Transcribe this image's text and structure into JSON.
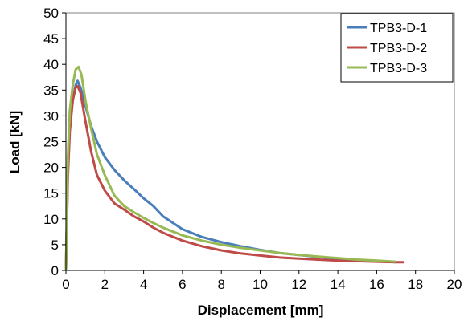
{
  "chart_data": {
    "type": "line",
    "title": "",
    "xlabel": "Displacement [mm]",
    "ylabel": "Load [kN]",
    "xlim": [
      0,
      20
    ],
    "ylim": [
      0,
      50
    ],
    "xticks": [
      0,
      2,
      4,
      6,
      8,
      10,
      12,
      14,
      16,
      18,
      20
    ],
    "yticks": [
      0,
      5,
      10,
      15,
      20,
      25,
      30,
      35,
      40,
      45,
      50
    ],
    "grid": false,
    "legend_position": "top-right",
    "series": [
      {
        "name": "TPB3-D-1",
        "color": "#4a7ebb",
        "points": [
          [
            0,
            0
          ],
          [
            0.1,
            20
          ],
          [
            0.2,
            28
          ],
          [
            0.35,
            33
          ],
          [
            0.5,
            36
          ],
          [
            0.6,
            36.8
          ],
          [
            0.75,
            35.5
          ],
          [
            1.0,
            32
          ],
          [
            1.3,
            28
          ],
          [
            1.6,
            25
          ],
          [
            2.0,
            22
          ],
          [
            2.5,
            19.5
          ],
          [
            3.0,
            17.5
          ],
          [
            3.5,
            15.8
          ],
          [
            4.0,
            14
          ],
          [
            4.5,
            12.5
          ],
          [
            5.0,
            10.5
          ],
          [
            6.0,
            8
          ],
          [
            7.0,
            6.5
          ],
          [
            8.0,
            5.5
          ],
          [
            9.0,
            4.7
          ],
          [
            10.0,
            4.0
          ],
          [
            11.0,
            3.4
          ],
          [
            12.0,
            3.0
          ],
          [
            13.0,
            2.6
          ],
          [
            14.0,
            2.3
          ],
          [
            15.0,
            2.0
          ],
          [
            16.0,
            1.8
          ],
          [
            17.0,
            1.6
          ]
        ]
      },
      {
        "name": "TPB3-D-2",
        "color": "#be4b48",
        "points": [
          [
            0,
            0
          ],
          [
            0.1,
            18
          ],
          [
            0.2,
            27
          ],
          [
            0.35,
            33
          ],
          [
            0.5,
            35.5
          ],
          [
            0.6,
            35.8
          ],
          [
            0.75,
            34.5
          ],
          [
            1.0,
            29
          ],
          [
            1.3,
            23
          ],
          [
            1.6,
            18.5
          ],
          [
            2.0,
            15.5
          ],
          [
            2.5,
            13
          ],
          [
            3.0,
            11.8
          ],
          [
            3.5,
            10.5
          ],
          [
            4.0,
            9.5
          ],
          [
            4.5,
            8.3
          ],
          [
            5.0,
            7.3
          ],
          [
            6.0,
            5.8
          ],
          [
            7.0,
            4.7
          ],
          [
            8.0,
            3.9
          ],
          [
            9.0,
            3.3
          ],
          [
            10.0,
            2.9
          ],
          [
            11.0,
            2.5
          ],
          [
            12.0,
            2.3
          ],
          [
            13.0,
            2.1
          ],
          [
            14.0,
            1.9
          ],
          [
            15.0,
            1.8
          ],
          [
            16.0,
            1.7
          ],
          [
            17.0,
            1.6
          ],
          [
            17.4,
            1.6
          ]
        ]
      },
      {
        "name": "TPB3-D-3",
        "color": "#98b954",
        "points": [
          [
            0,
            0
          ],
          [
            0.1,
            22
          ],
          [
            0.2,
            31
          ],
          [
            0.35,
            36
          ],
          [
            0.5,
            39
          ],
          [
            0.65,
            39.5
          ],
          [
            0.8,
            38
          ],
          [
            1.0,
            33
          ],
          [
            1.3,
            27.5
          ],
          [
            1.6,
            22.5
          ],
          [
            2.0,
            18.5
          ],
          [
            2.5,
            14.5
          ],
          [
            3.0,
            12.5
          ],
          [
            3.5,
            11.3
          ],
          [
            4.0,
            10.2
          ],
          [
            4.5,
            9.2
          ],
          [
            5.0,
            8.3
          ],
          [
            6.0,
            6.8
          ],
          [
            7.0,
            5.8
          ],
          [
            8.0,
            5.0
          ],
          [
            9.0,
            4.4
          ],
          [
            10.0,
            3.9
          ],
          [
            11.0,
            3.4
          ],
          [
            12.0,
            3.0
          ],
          [
            13.0,
            2.7
          ],
          [
            14.0,
            2.4
          ],
          [
            15.0,
            2.1
          ],
          [
            16.0,
            1.9
          ],
          [
            17.0,
            1.7
          ]
        ]
      }
    ]
  }
}
